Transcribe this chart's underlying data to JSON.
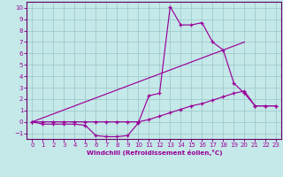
{
  "xlabel": "Windchill (Refroidissement éolien,°C)",
  "bg_color": "#c5e8e8",
  "grid_color": "#a0cccc",
  "line_color": "#990099",
  "spine_color": "#660066",
  "xlim": [
    -0.5,
    23.5
  ],
  "ylim": [
    -1.5,
    10.5
  ],
  "xticks": [
    0,
    1,
    2,
    3,
    4,
    5,
    6,
    7,
    8,
    9,
    10,
    11,
    12,
    13,
    14,
    15,
    16,
    17,
    18,
    19,
    20,
    21,
    22,
    23
  ],
  "yticks": [
    -1,
    0,
    1,
    2,
    3,
    4,
    5,
    6,
    7,
    8,
    9,
    10
  ],
  "line1_x": [
    0,
    1,
    2,
    3,
    4,
    5,
    6,
    7,
    8,
    9,
    10,
    11,
    12,
    13,
    14,
    15,
    16,
    17,
    18,
    19,
    20,
    21,
    22,
    23
  ],
  "line1_y": [
    0,
    -0.2,
    -0.2,
    -0.2,
    -0.2,
    -0.3,
    -1.2,
    -1.3,
    -1.3,
    -1.2,
    -0.1,
    2.3,
    2.5,
    10.1,
    8.5,
    8.5,
    8.7,
    7.0,
    6.3,
    3.4,
    2.5,
    1.4,
    1.4,
    1.4
  ],
  "line2_x": [
    0,
    1,
    2,
    3,
    4,
    5,
    6,
    7,
    8,
    9,
    10,
    11,
    12,
    13,
    14,
    15,
    16,
    17,
    18,
    19,
    20,
    21,
    22,
    23
  ],
  "line2_y": [
    0.0,
    0.0,
    0.0,
    0.0,
    0.0,
    0.0,
    0.0,
    0.0,
    0.0,
    0.0,
    0.0,
    0.2,
    0.5,
    0.8,
    1.1,
    1.4,
    1.6,
    1.9,
    2.2,
    2.5,
    2.7,
    1.4,
    1.4,
    1.4
  ],
  "line3_x": [
    0,
    20
  ],
  "line3_y": [
    0.0,
    7.0
  ],
  "tick_labelsize": 5.0,
  "xlabel_fontsize": 5.2,
  "marker_size": 2.8,
  "linewidth": 0.85
}
